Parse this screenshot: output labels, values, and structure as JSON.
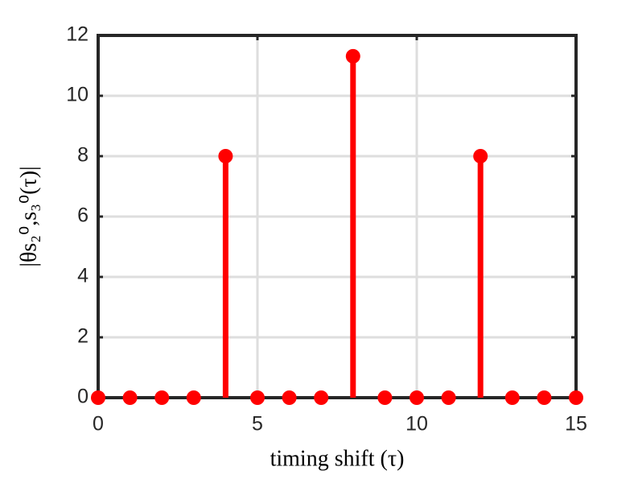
{
  "chart_data": {
    "type": "stem",
    "xlabel": "timing shift (τ)",
    "ylabel": "|θs₂⁰,s₃⁰(τ)|",
    "x": [
      0,
      1,
      2,
      3,
      4,
      5,
      6,
      7,
      8,
      9,
      10,
      11,
      12,
      13,
      14,
      15
    ],
    "values": [
      0,
      0,
      0,
      0,
      8,
      0,
      0,
      0,
      11.31,
      0,
      0,
      0,
      8,
      0,
      0,
      0
    ],
    "color": "#ff0000",
    "xlim": [
      0,
      15
    ],
    "xticks": [
      0,
      5,
      10,
      15
    ],
    "ylim": [
      0,
      12
    ],
    "yticks": [
      0,
      2,
      4,
      6,
      8,
      10,
      12
    ],
    "grid": true
  }
}
